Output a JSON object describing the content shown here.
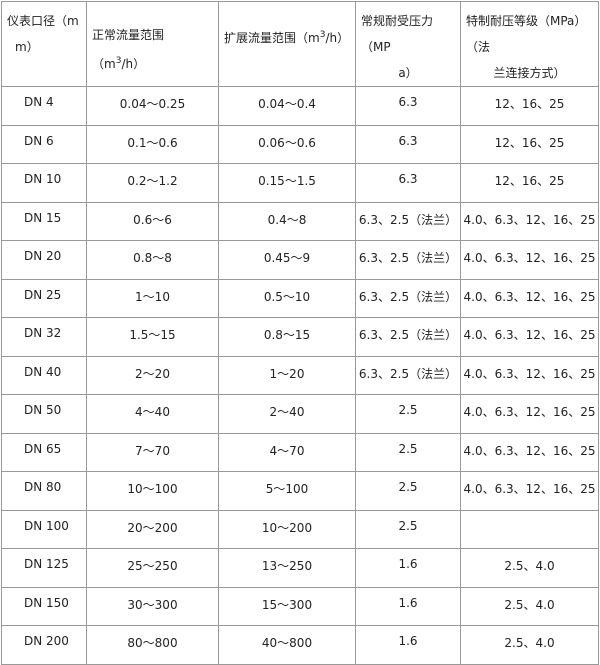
{
  "headers": [
    "仪表口径（mm）",
    "正常流量范围（m³/h）",
    "扩展流量范围（m³/h）",
    "常规耐受压力（MPa）",
    "特制耐压等级（MPa）（法兰连接方式）"
  ],
  "header_parts": {
    "col1_a": "仪表口径（m",
    "col1_b": "m）",
    "col2_pre": "正常流量范围（m",
    "col3_pre": "扩展流量范围（m",
    "sup": "3",
    "unit_post": "/h）",
    "col4_a": "常规耐受压力（MP",
    "col4_b": "a）",
    "col5_a": "特制耐压等级（MPa）（法",
    "col5_b": "兰连接方式）"
  },
  "rows": [
    [
      "DN 4",
      "0.04～0.25",
      "0.04～0.4",
      "6.3",
      "12、16、25"
    ],
    [
      "DN 6",
      "0.1～0.6",
      "0.06～0.6",
      "6.3",
      "12、16、25"
    ],
    [
      "DN 10",
      "0.2～1.2",
      "0.15～1.5",
      "6.3",
      "12、16、25"
    ],
    [
      "DN 15",
      "0.6～6",
      "0.4～8",
      "6.3、2.5（法兰）",
      "4.0、6.3、12、16、25"
    ],
    [
      "DN 20",
      "0.8～8",
      "0.45～9",
      "6.3、2.5（法兰）",
      "4.0、6.3、12、16、25"
    ],
    [
      "DN 25",
      "1～10",
      "0.5～10",
      "6.3、2.5（法兰）",
      "4.0、6.3、12、16、25"
    ],
    [
      "DN 32",
      "1.5～15",
      "0.8～15",
      "6.3、2.5（法兰）",
      "4.0、6.3、12、16、25"
    ],
    [
      "DN 40",
      "2～20",
      "1～20",
      "6.3、2.5（法兰）",
      "4.0、6.3、12、16、25"
    ],
    [
      "DN 50",
      "4～40",
      "2～40",
      "2.5",
      "4.0、6.3、12、16、25"
    ],
    [
      "DN 65",
      "7～70",
      "4～70",
      "2.5",
      "4.0、6.3、12、16、25"
    ],
    [
      "DN 80",
      "10～100",
      "5～100",
      "2.5",
      "4.0、6.3、12、16、25"
    ],
    [
      "DN 100",
      "20～200",
      "10～200",
      "2.5",
      ""
    ],
    [
      "DN 125",
      "25～250",
      "13～250",
      "1.6",
      "2.5、4.0"
    ],
    [
      "DN 150",
      "30～300",
      "15～300",
      "1.6",
      "2.5、4.0"
    ],
    [
      "DN 200",
      "80～800",
      "40～800",
      "1.6",
      "2.5、4.0"
    ]
  ]
}
